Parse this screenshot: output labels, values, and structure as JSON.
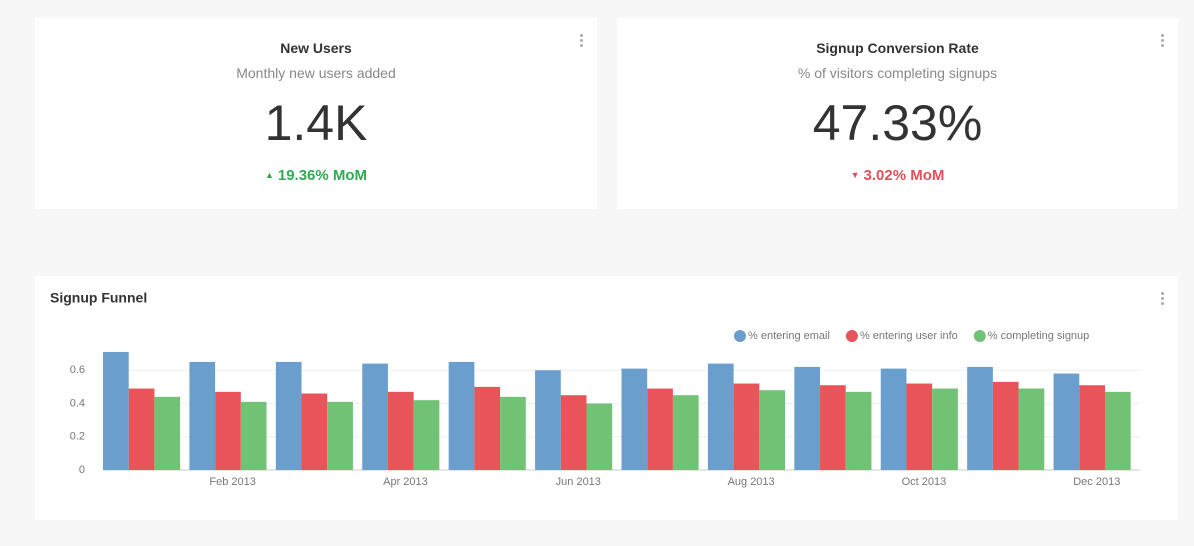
{
  "cards": [
    {
      "title": "New Users",
      "subtitle": "Monthly new users added",
      "value": "1.4K",
      "change": "19.36% MoM"
    },
    {
      "title": "Signup Conversion Rate",
      "subtitle": "% of visitors completing signups",
      "value": "47.33%",
      "change": "3.02% MoM"
    }
  ],
  "chart_data": {
    "type": "bar",
    "title": "Signup Funnel",
    "categories": [
      null,
      "Feb 2013",
      null,
      "Apr 2013",
      null,
      "Jun 2013",
      null,
      "Aug 2013",
      null,
      "Oct 2013",
      null,
      "Dec 2013"
    ],
    "series": [
      {
        "name": "% entering email",
        "color": "#6a9fcd",
        "values": [
          0.71,
          0.65,
          0.65,
          0.64,
          0.65,
          0.6,
          0.61,
          0.64,
          0.62,
          0.61,
          0.62,
          0.58
        ]
      },
      {
        "name": "% entering user info",
        "color": "#e9545a",
        "values": [
          0.49,
          0.47,
          0.46,
          0.47,
          0.5,
          0.45,
          0.49,
          0.52,
          0.51,
          0.52,
          0.53,
          0.51
        ]
      },
      {
        "name": "% completing signup",
        "color": "#72c275",
        "values": [
          0.44,
          0.41,
          0.41,
          0.42,
          0.44,
          0.4,
          0.45,
          0.48,
          0.47,
          0.49,
          0.49,
          0.47
        ]
      }
    ],
    "ylim": [
      0,
      0.8
    ],
    "yticks": [
      0,
      0.2,
      0.4,
      0.6
    ],
    "grid": true,
    "legend": "top-right"
  }
}
